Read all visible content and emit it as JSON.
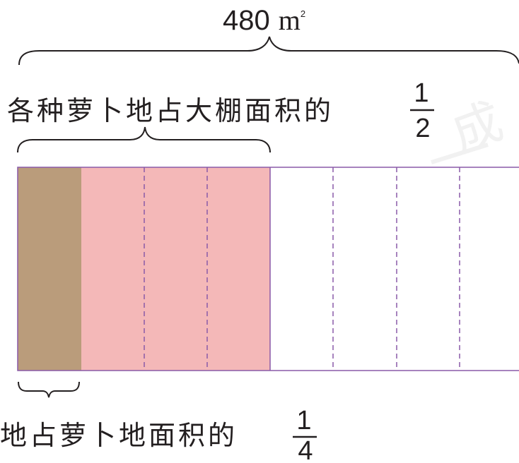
{
  "total_area": {
    "number": "480",
    "unit": "m",
    "exponent": "2"
  },
  "radish_label": {
    "text": "各种萝卜地占大棚面积的",
    "fraction": {
      "numerator": "1",
      "denominator": "2"
    }
  },
  "sub_label": {
    "text": "地占萝卜地面积的",
    "fraction": {
      "numerator": "1",
      "denominator": "4"
    }
  },
  "watermark": "成",
  "colors": {
    "brown": "#ba9c7b",
    "pink": "#f4b8b8",
    "outline": "#8a5aa8",
    "bracket": "#231f20",
    "text": "#231f20"
  }
}
